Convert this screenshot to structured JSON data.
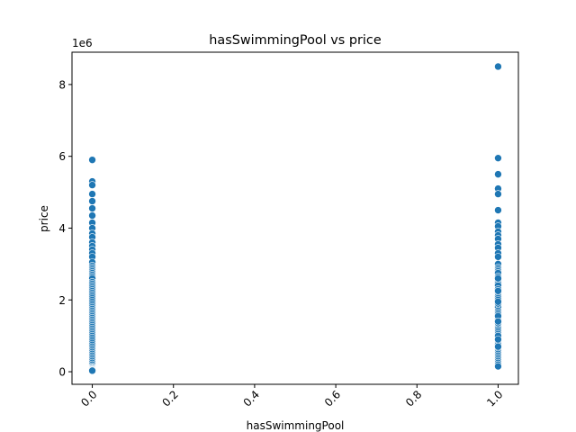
{
  "chart_data": {
    "type": "scatter",
    "title": "hasSwimmingPool vs price",
    "xlabel": "hasSwimmingPool",
    "ylabel": "price",
    "y_offset_label": "1e6",
    "xlim": [
      -0.05,
      1.05
    ],
    "ylim": [
      -350000,
      8900000
    ],
    "x_ticks": [
      0.0,
      0.2,
      0.4,
      0.6,
      0.8,
      1.0
    ],
    "x_tick_labels": [
      "0.0",
      "0.2",
      "0.4",
      "0.6",
      "0.8",
      "1.0"
    ],
    "y_ticks": [
      0,
      2000000,
      4000000,
      6000000,
      8000000
    ],
    "y_tick_labels": [
      "0",
      "2",
      "4",
      "6",
      "8"
    ],
    "marker_color": "#1f77b4",
    "grid": false,
    "series": [
      {
        "x": [
          0,
          0,
          0,
          0,
          0,
          0,
          0,
          0,
          0,
          0,
          0,
          0,
          0,
          0,
          0,
          0,
          0,
          0,
          0,
          0,
          0,
          0,
          0,
          0,
          0,
          0,
          0,
          0,
          0,
          0,
          0,
          0,
          0,
          0,
          0,
          0,
          0,
          0,
          0,
          0,
          0,
          0,
          0,
          0,
          0,
          0,
          0,
          0,
          0,
          0,
          0,
          0,
          0,
          0,
          0,
          0,
          0,
          0,
          0,
          0,
          0,
          0,
          0,
          0,
          0,
          0,
          0,
          0,
          0,
          0,
          0,
          0,
          0,
          0,
          0,
          0,
          0,
          0,
          0,
          0,
          1,
          1,
          1,
          1,
          1,
          1,
          1,
          1,
          1,
          1,
          1,
          1,
          1,
          1,
          1,
          1,
          1,
          1,
          1,
          1,
          1,
          1,
          1,
          1,
          1,
          1,
          1,
          1,
          1,
          1,
          1,
          1,
          1,
          1,
          1,
          1,
          1,
          1,
          1,
          1,
          1,
          1,
          1,
          1,
          1,
          1,
          1,
          1,
          1,
          1,
          1,
          1,
          1,
          1,
          1,
          1,
          1,
          1,
          1,
          1,
          1,
          1,
          1,
          1,
          1,
          1,
          1,
          1,
          1,
          1,
          1,
          1,
          1
        ],
        "y": [
          5900000,
          5300000,
          5200000,
          4950000,
          4750000,
          4550000,
          4350000,
          4150000,
          4000000,
          3850000,
          3750000,
          3600000,
          3500000,
          3400000,
          3300000,
          3200000,
          3050000,
          2950000,
          2900000,
          2850000,
          2800000,
          2750000,
          2700000,
          2650000,
          2600000,
          2500000,
          2450000,
          2400000,
          2350000,
          2300000,
          2250000,
          2200000,
          2150000,
          2100000,
          2050000,
          2000000,
          1950000,
          1900000,
          1850000,
          1800000,
          1750000,
          1700000,
          1650000,
          1600000,
          1550000,
          1500000,
          1450000,
          1400000,
          1350000,
          1300000,
          1250000,
          1200000,
          1150000,
          1100000,
          1050000,
          1000000,
          950000,
          900000,
          850000,
          800000,
          750000,
          700000,
          650000,
          600000,
          550000,
          500000,
          450000,
          400000,
          350000,
          300000,
          250000,
          200000,
          150000,
          120000,
          100000,
          80000,
          60000,
          50000,
          40000,
          30000,
          8500000,
          5950000,
          5500000,
          5100000,
          4950000,
          4500000,
          4150000,
          4050000,
          3900000,
          3800000,
          3700000,
          3550000,
          3450000,
          3300000,
          3200000,
          3000000,
          2900000,
          2850000,
          2800000,
          2750000,
          2650000,
          2550000,
          2500000,
          2450000,
          2400000,
          2300000,
          2200000,
          2100000,
          2050000,
          2000000,
          1900000,
          1850000,
          1800000,
          1700000,
          1650000,
          1600000,
          1500000,
          1450000,
          1400000,
          1300000,
          1250000,
          1200000,
          1150000,
          1100000,
          1050000,
          1000000,
          950000,
          900000,
          850000,
          800000,
          750000,
          700000,
          650000,
          600000,
          550000,
          500000,
          450000,
          400000,
          350000,
          300000,
          250000,
          200000,
          150000,
          1900000,
          1550000,
          1350000,
          1000000,
          900000,
          700000,
          2600000,
          2250000,
          1950000,
          1400000
        ]
      }
    ]
  }
}
